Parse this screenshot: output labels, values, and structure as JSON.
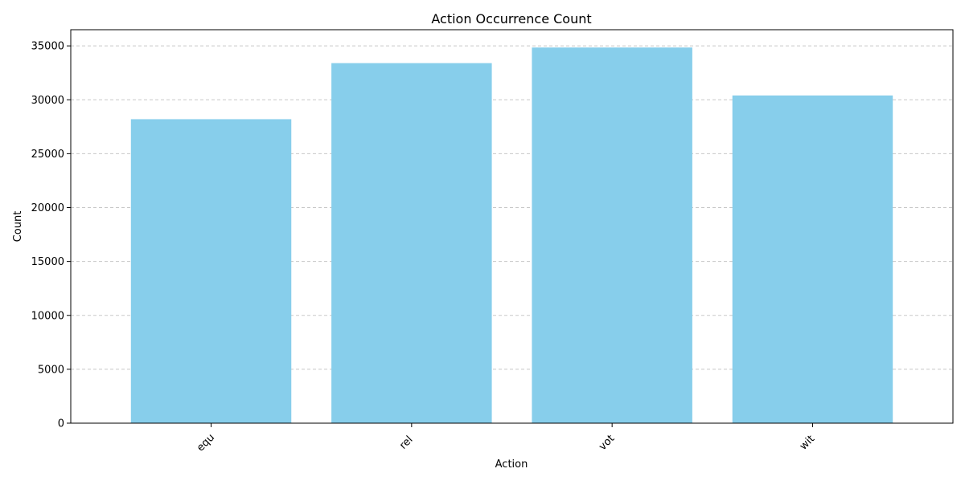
{
  "chart_data": {
    "type": "bar",
    "title": "Action Occurrence Count",
    "xlabel": "Action",
    "ylabel": "Count",
    "categories": [
      "equ",
      "rel",
      "vot",
      "wit"
    ],
    "values": [
      28200,
      33400,
      34850,
      30400
    ],
    "ylim": [
      0,
      36500
    ],
    "yticks": [
      0,
      5000,
      10000,
      15000,
      20000,
      25000,
      30000,
      35000
    ],
    "grid": {
      "axis": "y",
      "style": "dashed"
    },
    "legend": "none",
    "colors": {
      "bar": "#87ceeb",
      "grid": "#c8c8c8",
      "axis": "#000000"
    }
  }
}
